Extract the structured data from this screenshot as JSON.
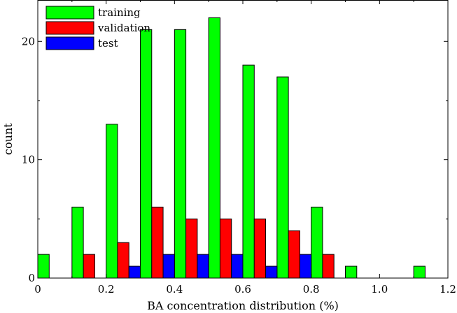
{
  "chart_data": {
    "type": "bar",
    "xlabel": "BA concentration distribution (%)",
    "ylabel": "count",
    "xlim": [
      0,
      1.2
    ],
    "ylim": [
      0,
      23.5
    ],
    "xticks": [
      "0",
      "0.2",
      "0.4",
      "0.6",
      "0.8",
      "1.0",
      "1.2"
    ],
    "yticks": [
      "0",
      "10",
      "20"
    ],
    "legend_position": "top-left",
    "grid": false,
    "bin_width": 0.1,
    "series": [
      {
        "name": "training",
        "color": "#00ff00",
        "x": [
          0.0,
          0.1,
          0.2,
          0.3,
          0.4,
          0.5,
          0.6,
          0.7,
          0.8,
          0.9,
          1.1
        ],
        "values": [
          2,
          6,
          13,
          21,
          21,
          22,
          18,
          17,
          6,
          1,
          1
        ]
      },
      {
        "name": "validation",
        "color": "#ff0000",
        "x": [
          0.1,
          0.2,
          0.3,
          0.4,
          0.5,
          0.6,
          0.7,
          0.8
        ],
        "values": [
          2,
          3,
          6,
          5,
          5,
          5,
          4,
          2
        ]
      },
      {
        "name": "test",
        "color": "#0000ff",
        "x": [
          0.2,
          0.3,
          0.4,
          0.5,
          0.6,
          0.7
        ],
        "values": [
          1,
          2,
          2,
          2,
          1,
          2
        ]
      }
    ]
  }
}
